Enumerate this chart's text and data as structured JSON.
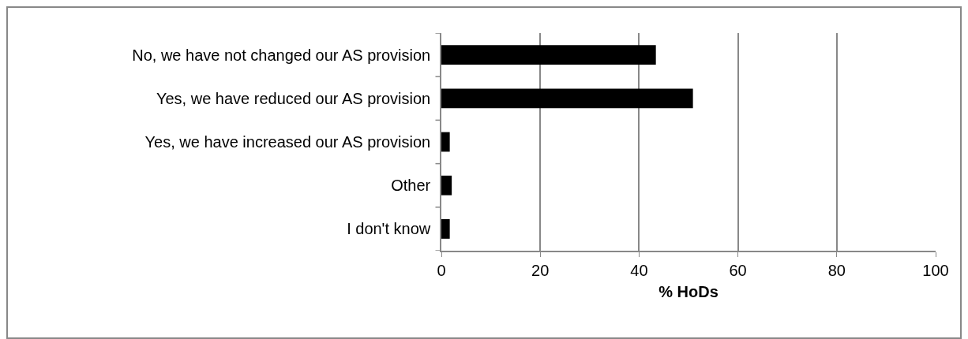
{
  "chart_data": {
    "type": "bar",
    "orientation": "horizontal",
    "xlabel": "% HoDs",
    "categories": [
      "No, we have not changed our AS provision",
      "Yes, we have reduced our AS provision",
      "Yes, we have increased our AS provision",
      "Other",
      "I don't know"
    ],
    "values": [
      43.4,
      50.9,
      1.7,
      2.1,
      1.7
    ],
    "color": "#000000",
    "xlim": [
      0,
      100
    ],
    "xticks": [
      0,
      20,
      40,
      60,
      80,
      100
    ],
    "grid": "x",
    "legend": false
  }
}
